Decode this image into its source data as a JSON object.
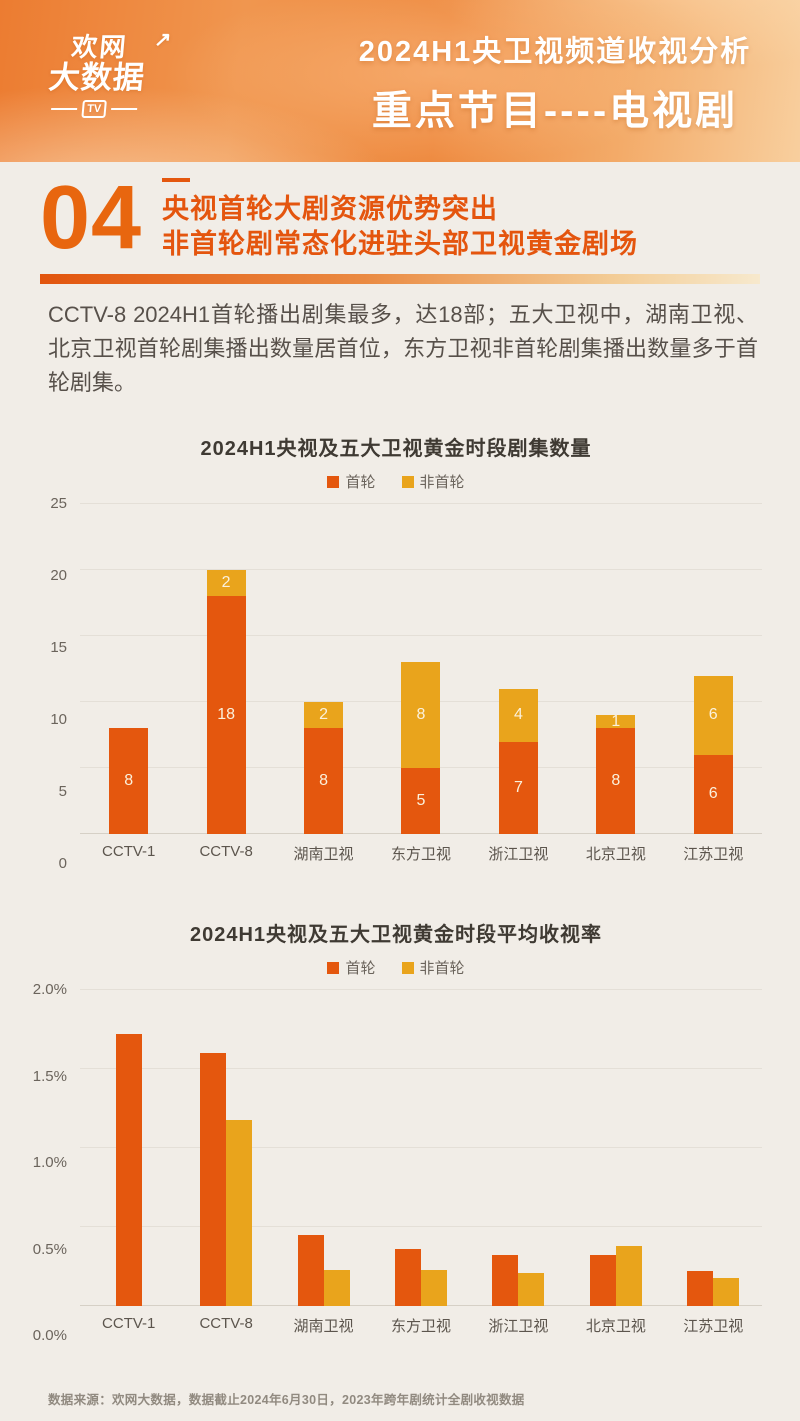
{
  "header": {
    "logo": {
      "line1": "欢网",
      "arrow": "↗",
      "line2": "大数据",
      "tv": "TV"
    },
    "title_line1": "2024H1央卫视频道收视分析",
    "title_line2": "重点节目----电视剧"
  },
  "section": {
    "number": "04",
    "heading_line1": "央视首轮大剧资源优势突出",
    "heading_line2": "非首轮剧常态化进驻头部卫视黄金剧场",
    "paragraph": "CCTV-8 2024H1首轮播出剧集最多，达18部；五大卫视中，湖南卫视、北京卫视首轮剧集播出数量居首位，东方卫视非首轮剧集播出数量多于首轮剧集。"
  },
  "colors": {
    "first_run": "#e4570e",
    "non_first_run": "#e9a41c",
    "accent": "#e4550e",
    "page_background": "#f1ede7"
  },
  "chart_data": [
    {
      "type": "bar",
      "variant": "stacked",
      "title": "2024H1央视及五大卫视黄金时段剧集数量",
      "categories": [
        "CCTV-1",
        "CCTV-8",
        "湖南卫视",
        "东方卫视",
        "浙江卫视",
        "北京卫视",
        "江苏卫视"
      ],
      "series": [
        {
          "name": "首轮",
          "color_key": "first_run",
          "values": [
            8,
            18,
            8,
            5,
            7,
            8,
            6
          ]
        },
        {
          "name": "非首轮",
          "color_key": "non_first_run",
          "values": [
            0,
            2,
            2,
            8,
            4,
            1,
            6
          ]
        }
      ],
      "ylim": [
        0,
        25
      ],
      "yticks": [
        {
          "value": 0,
          "label": "0"
        },
        {
          "value": 5,
          "label": "5"
        },
        {
          "value": 10,
          "label": "10"
        },
        {
          "value": 15,
          "label": "15"
        },
        {
          "value": 20,
          "label": "20"
        },
        {
          "value": 25,
          "label": "25"
        }
      ],
      "grid": true,
      "legend_position": "top",
      "value_labels": true
    },
    {
      "type": "bar",
      "variant": "grouped",
      "title": "2024H1央视及五大卫视黄金时段平均收视率",
      "categories": [
        "CCTV-1",
        "CCTV-8",
        "湖南卫视",
        "东方卫视",
        "浙江卫视",
        "北京卫视",
        "江苏卫视"
      ],
      "series": [
        {
          "name": "首轮",
          "color_key": "first_run",
          "values": [
            1.72,
            1.6,
            0.45,
            0.36,
            0.32,
            0.32,
            0.22
          ]
        },
        {
          "name": "非首轮",
          "color_key": "non_first_run",
          "values": [
            null,
            1.18,
            0.23,
            0.23,
            0.21,
            0.38,
            0.18
          ]
        }
      ],
      "ylim": [
        0,
        2
      ],
      "yticks": [
        {
          "value": 0,
          "label": "0.0%"
        },
        {
          "value": 0.5,
          "label": "0.5%"
        },
        {
          "value": 1,
          "label": "1.0%"
        },
        {
          "value": 1.5,
          "label": "1.5%"
        },
        {
          "value": 2,
          "label": "2.0%"
        }
      ],
      "grid": true,
      "legend_position": "top",
      "value_labels": false
    }
  ],
  "footer": {
    "source": "数据来源：欢网大数据，数据截止2024年6月30日，2023年跨年剧统计全剧收视数据"
  }
}
